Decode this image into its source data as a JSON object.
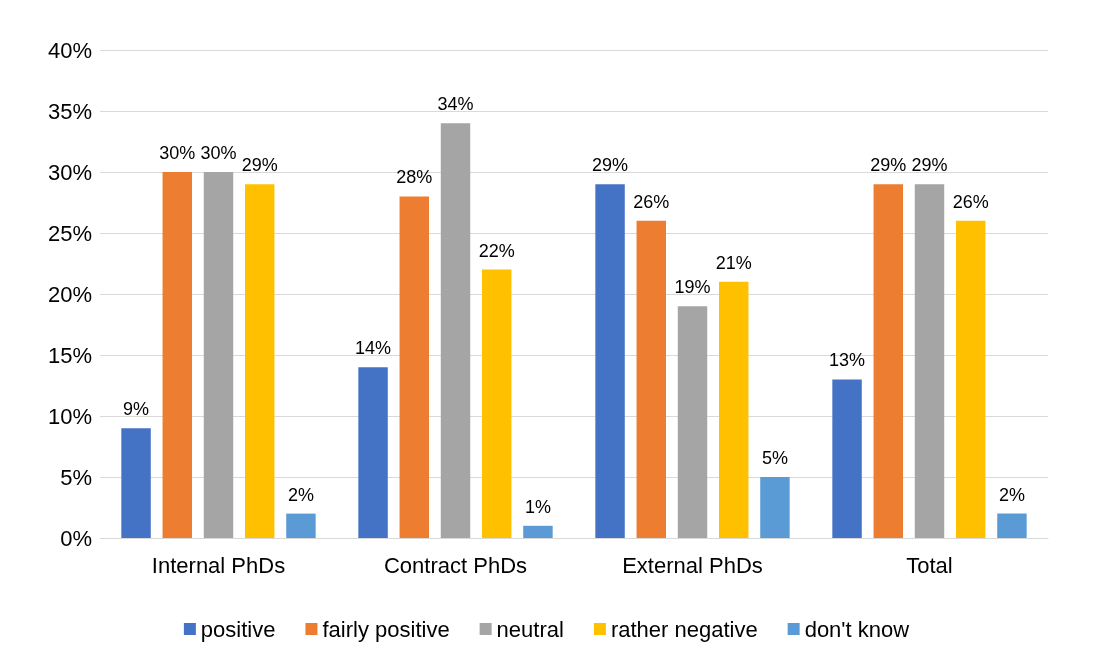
{
  "chart_data": {
    "type": "bar",
    "categories": [
      "Internal PhDs",
      "Contract PhDs",
      "External PhDs",
      "Total"
    ],
    "series": [
      {
        "name": "positive",
        "color": "#4472c4",
        "values": [
          9,
          14,
          29,
          13
        ],
        "value_labels": [
          "9%",
          "14%",
          "29%",
          "13%"
        ]
      },
      {
        "name": "fairly positive",
        "color": "#ed7d31",
        "values": [
          30,
          28,
          26,
          29
        ],
        "value_labels": [
          "30%",
          "28%",
          "26%",
          "29%"
        ]
      },
      {
        "name": "neutral",
        "color": "#a5a5a5",
        "values": [
          30,
          34,
          19,
          29
        ],
        "value_labels": [
          "30%",
          "34%",
          "19%",
          "29%"
        ]
      },
      {
        "name": "rather negative",
        "color": "#ffc000",
        "values": [
          29,
          22,
          21,
          26
        ],
        "value_labels": [
          "29%",
          "22%",
          "21%",
          "26%"
        ]
      },
      {
        "name": "don't know",
        "color": "#5b9bd5",
        "values": [
          2,
          1,
          5,
          2
        ],
        "value_labels": [
          "2%",
          "1%",
          "5%",
          "2%"
        ]
      }
    ],
    "ylim": [
      0,
      40
    ],
    "yticks": [
      {
        "value": 0,
        "label": "0%"
      },
      {
        "value": 5,
        "label": "5%"
      },
      {
        "value": 10,
        "label": "10%"
      },
      {
        "value": 15,
        "label": "15%"
      },
      {
        "value": 20,
        "label": "20%"
      },
      {
        "value": 25,
        "label": "25%"
      },
      {
        "value": 30,
        "label": "30%"
      },
      {
        "value": 35,
        "label": "35%"
      },
      {
        "value": 40,
        "label": "40%"
      }
    ],
    "grid": "y",
    "legend": "bottom"
  }
}
